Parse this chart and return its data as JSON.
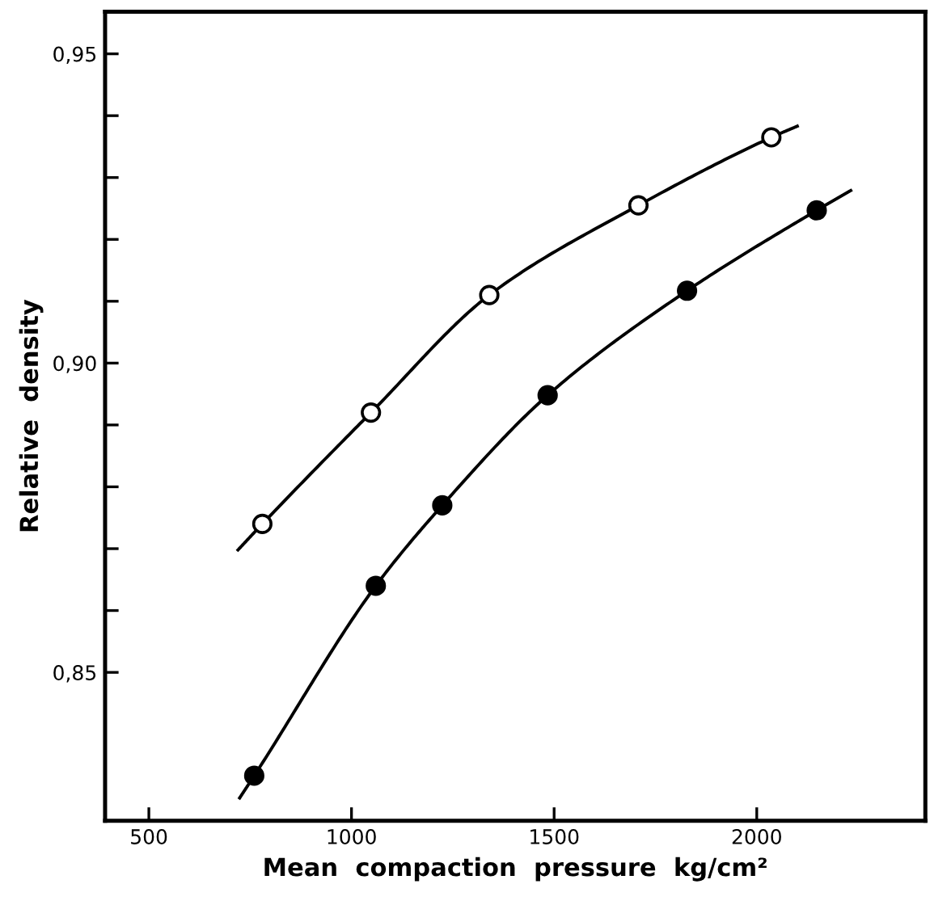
{
  "chart_data": {
    "type": "scatter",
    "xlabel": "Mean  compaction  pressure  kg/cm²",
    "ylabel": "Relative  density",
    "xlim": [
      392,
      2416
    ],
    "xticks": [
      500,
      1000,
      1500,
      2000
    ],
    "ylim": [
      0.826,
      0.9568
    ],
    "yticks": [
      {
        "value": 0.85,
        "label": "0,85"
      },
      {
        "value": 0.86,
        "label": null
      },
      {
        "value": 0.87,
        "label": null
      },
      {
        "value": 0.88,
        "label": null
      },
      {
        "value": 0.89,
        "label": null
      },
      {
        "value": 0.9,
        "label": "0,90"
      },
      {
        "value": 0.91,
        "label": null
      },
      {
        "value": 0.92,
        "label": null
      },
      {
        "value": 0.93,
        "label": null
      },
      {
        "value": 0.94,
        "label": null
      },
      {
        "value": 0.95,
        "label": "0,95"
      }
    ],
    "grid": false,
    "series": [
      {
        "type": "line",
        "color": "#000000",
        "x": [
          720,
          780,
          1048,
          1340,
          1708,
          2036,
          2100
        ],
        "values": [
          0.8698,
          0.874,
          0.892,
          0.911,
          0.9255,
          0.9365,
          0.9383
        ]
      },
      {
        "type": "line",
        "color": "#000000",
        "x": [
          724,
          760,
          1060,
          1224,
          1484,
          1828,
          2148,
          2232
        ],
        "values": [
          0.8297,
          0.8333,
          0.864,
          0.877,
          0.8948,
          0.9117,
          0.9247,
          0.9279
        ]
      },
      {
        "marker": "circle",
        "color": "#ffffff",
        "x": [
          780,
          1048,
          1340,
          1708,
          2036
        ],
        "values": [
          0.874,
          0.892,
          0.911,
          0.9255,
          0.9365
        ]
      },
      {
        "marker": "circle",
        "color": "#000000",
        "x": [
          760,
          1060,
          1224,
          1484,
          1828,
          2148
        ],
        "values": [
          0.8333,
          0.864,
          0.877,
          0.8948,
          0.9117,
          0.9247
        ]
      }
    ]
  }
}
